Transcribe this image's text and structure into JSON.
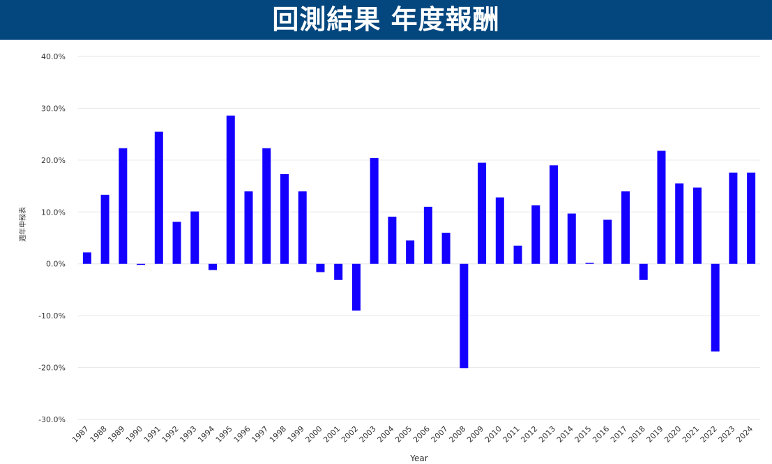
{
  "header": {
    "title": "回測結果 年度報酬"
  },
  "chart_data": {
    "type": "bar",
    "title": "回測結果 年度報酬",
    "xlabel": "Year",
    "ylabel": "週年申報表",
    "ylim": [
      -30,
      40
    ],
    "yticks": [
      {
        "value": 40,
        "label": "40.0%"
      },
      {
        "value": 30,
        "label": "30.0%"
      },
      {
        "value": 20,
        "label": "20.0%"
      },
      {
        "value": 10,
        "label": "10.0%"
      },
      {
        "value": 0,
        "label": "0.0%"
      },
      {
        "value": -10,
        "label": "-10.0%"
      },
      {
        "value": -20,
        "label": "-20.0%"
      },
      {
        "value": -30,
        "label": "-30.0%"
      }
    ],
    "grid": true,
    "bar_color": "#1400ff",
    "categories": [
      "1987",
      "1988",
      "1989",
      "1990",
      "1991",
      "1992",
      "1993",
      "1994",
      "1995",
      "1996",
      "1997",
      "1998",
      "1999",
      "2000",
      "2001",
      "2002",
      "2003",
      "2004",
      "2005",
      "2006",
      "2007",
      "2008",
      "2009",
      "2010",
      "2011",
      "2012",
      "2013",
      "2014",
      "2015",
      "2016",
      "2017",
      "2018",
      "2019",
      "2020",
      "2021",
      "2022",
      "2023",
      "2024"
    ],
    "values": [
      2.2,
      13.3,
      22.3,
      -0.2,
      25.5,
      8.1,
      10.1,
      -1.2,
      28.6,
      14.0,
      22.3,
      17.3,
      14.0,
      -1.6,
      -3.1,
      -9.0,
      20.4,
      9.1,
      4.5,
      11.0,
      6.0,
      -20.1,
      19.5,
      12.8,
      3.5,
      11.3,
      19.0,
      9.7,
      0.2,
      8.5,
      14.0,
      -3.1,
      21.8,
      15.5,
      14.7,
      -16.9,
      17.6,
      17.6
    ]
  }
}
